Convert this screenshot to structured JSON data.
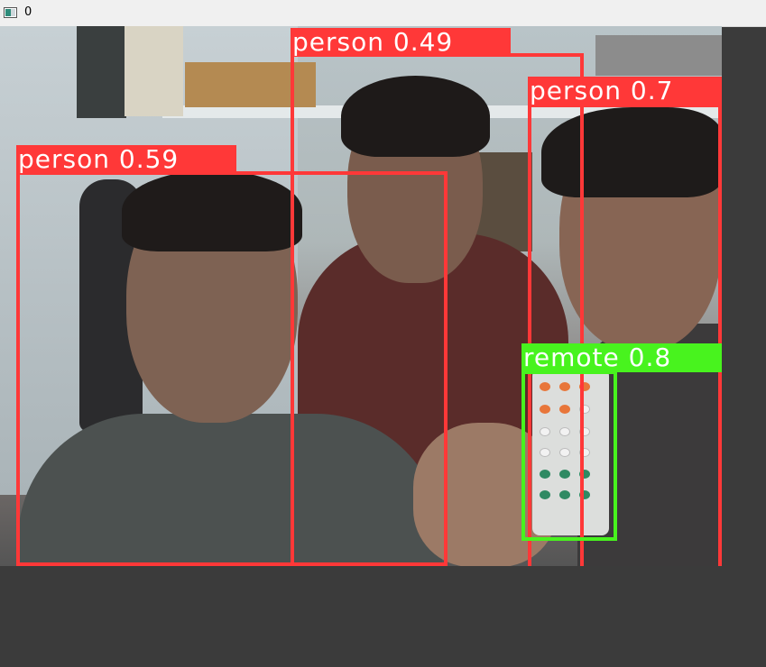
{
  "window": {
    "title": "0",
    "icon": "app-window-icon"
  },
  "detections": [
    {
      "label": "person 0.49",
      "color": "#ff3838"
    },
    {
      "label": "person 0.7",
      "color": "#ff3838"
    },
    {
      "label": "person 0.59",
      "color": "#ff3838"
    },
    {
      "label": "remote 0.8",
      "color": "#48f31e"
    }
  ]
}
